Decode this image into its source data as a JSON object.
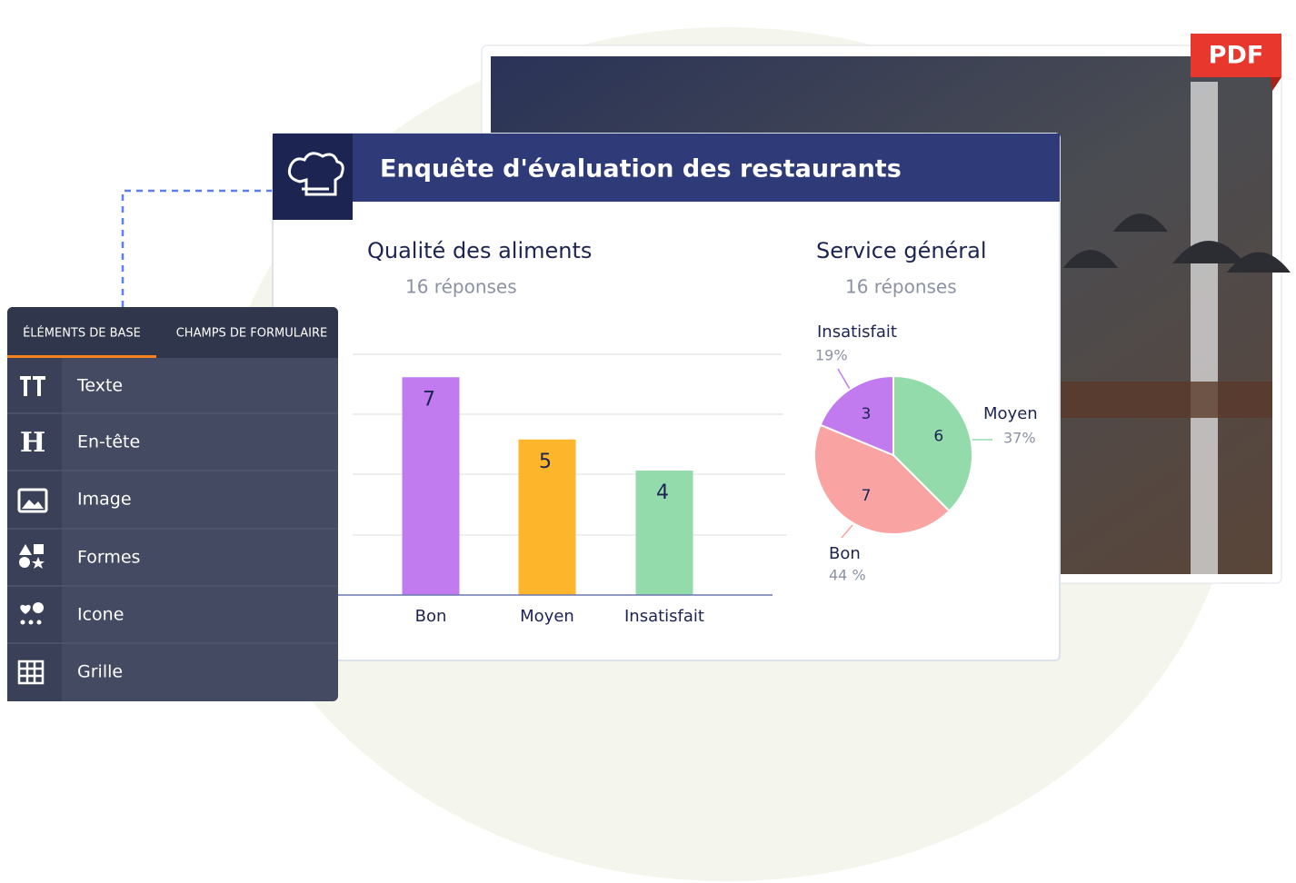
{
  "pdf_badge": "PDF",
  "report": {
    "title": "Enquête d'évaluation des restaurants"
  },
  "chart_data": [
    {
      "type": "bar",
      "title": "Qualité des aliments",
      "subtitle": "16 réponses",
      "categories": [
        "Bon",
        "Moyen",
        "Insatisfait"
      ],
      "values": [
        7,
        5,
        4
      ],
      "colors": [
        "#c17bef",
        "#fdb52b",
        "#94dbab"
      ],
      "ylim": [
        0,
        8
      ]
    },
    {
      "type": "pie",
      "title": "Service général",
      "subtitle": "16 réponses",
      "categories": [
        "Moyen",
        "Bon",
        "Insatisfait"
      ],
      "values": [
        6,
        7,
        3
      ],
      "shares": [
        37,
        44,
        19
      ],
      "share_labels": [
        "37%",
        "44 %",
        "19%"
      ],
      "colors": [
        "#94dbab",
        "#f9a4a3",
        "#c17bef"
      ]
    }
  ],
  "sidebar": {
    "tabs": [
      "ÉLÉMENTS DE BASE",
      "CHAMPS DE FORMULAIRE"
    ],
    "items": [
      "Texte",
      "En-tête",
      "Image",
      "Formes",
      "Icone",
      "Grille"
    ]
  }
}
